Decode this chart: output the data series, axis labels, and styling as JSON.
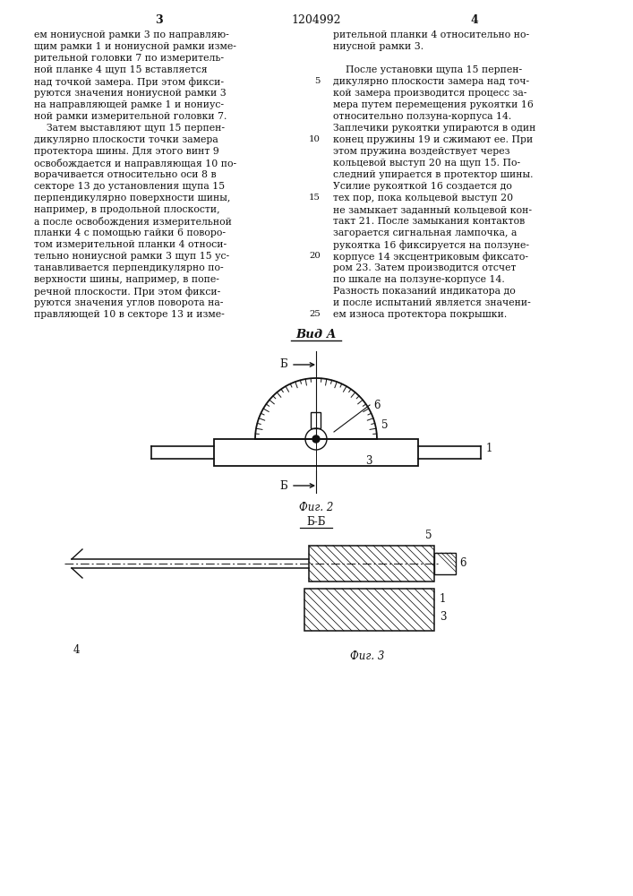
{
  "page_width": 7.07,
  "page_height": 10.0,
  "bg_color": "#ffffff",
  "text_color": "#111111",
  "header_left_num": "3",
  "header_center": "1204992",
  "header_right_num": "4",
  "col1_lines": [
    "ем нониусной рамки 3 по направляю-",
    "щим рамки 1 и нониусной рамки изме-",
    "рительной головки 7 по измеритель-",
    "ной планке 4 щуп 15 вставляется",
    "над точкой замера. При этом фикси-",
    "руются значения нониусной рамки 3",
    "на направляющей рамке 1 и нониус-",
    "ной рамки измерительной головки 7.",
    "    Затем выставляют щуп 15 перпен-",
    "дикулярно плоскости точки замера",
    "протектора шины. Для этого винт 9",
    "освобождается и направляющая 10 по-",
    "ворачивается относительно оси 8 в",
    "секторе 13 до установления щупа 15",
    "перпендикулярно поверхности шины,",
    "например, в продольной плоскости,",
    "а после освобождения измерительной",
    "планки 4 с помощью гайки 6 поворо-",
    "том измерительной планки 4 относи-",
    "тельно нониусной рамки 3 щуп 15 ус-",
    "танавливается перпендикулярно по-",
    "верхности шины, например, в попе-",
    "речной плоскости. При этом фикси-",
    "руются значения углов поворота на-",
    "правляющей 10 в секторе 13 и изме-"
  ],
  "col2_lines": [
    "рительной планки 4 относительно но-",
    "ниусной рамки 3.",
    "",
    "    После установки щупа 15 перпен-",
    "дикулярно плоскости замера над точ-",
    "кой замера производится процесс за-",
    "мера путем перемещения рукоятки 16",
    "относительно ползуна-корпуса 14.",
    "Заплечики рукоятки упираются в один",
    "конец пружины 19 и сжимают ее. При",
    "этом пружина воздействует через",
    "кольцевой выступ 20 на щуп 15. По-",
    "следний упирается в протектор шины.",
    "Усилие рукояткой 16 создается до",
    "тех пор, пока кольцевой выступ 20",
    "не замыкает заданный кольцевой кон-",
    "такт 21. После замыкания контактов",
    "загорается сигнальная лампочка, а",
    "рукоятка 16 фиксируется на ползуне-",
    "корпусе 14 эксцентриковым фиксато-",
    "ром 23. Затем производится отсчет",
    "по шкале на ползуне-корпусе 14.",
    "Разность показаний индикатора до",
    "и после испытаний является значени-",
    "ем износа протектора покрышки."
  ],
  "col2_line_numbers": {
    "4": 5,
    "9": 10,
    "14": 15,
    "19": 20,
    "24": 25
  },
  "vid_a": "Вид А",
  "fig2_caption": "Фиг. 2",
  "fig2_section": "Б-Б",
  "fig3_caption": "Фиг. 3"
}
